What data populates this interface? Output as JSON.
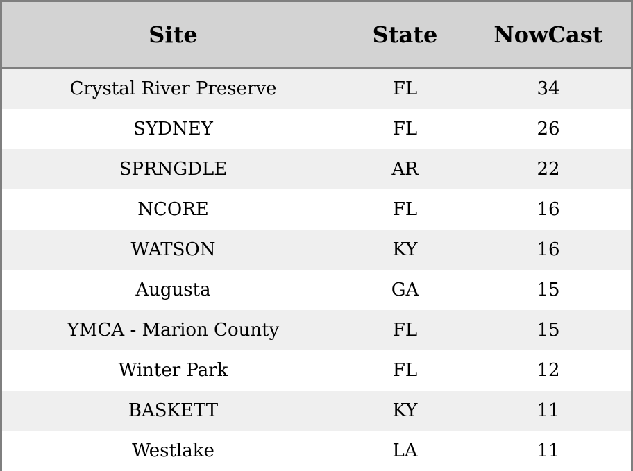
{
  "table": {
    "columns": [
      "Site",
      "State",
      "NowCast"
    ],
    "rows": [
      [
        "Crystal River Preserve",
        "FL",
        "34"
      ],
      [
        "SYDNEY",
        "FL",
        "26"
      ],
      [
        "SPRNGDLE",
        "AR",
        "22"
      ],
      [
        "NCORE",
        "FL",
        "16"
      ],
      [
        "WATSON",
        "KY",
        "16"
      ],
      [
        "Augusta",
        "GA",
        "15"
      ],
      [
        "YMCA - Marion County",
        "FL",
        "15"
      ],
      [
        "Winter Park",
        "FL",
        "12"
      ],
      [
        "BASKETT",
        "KY",
        "11"
      ],
      [
        "Westlake",
        "LA",
        "11"
      ]
    ]
  },
  "colors": {
    "header_bg": "#d3d3d3",
    "row_alt_bg": "#efefef",
    "row_bg": "#ffffff",
    "border": "#7f7f7f",
    "text": "#000000"
  }
}
